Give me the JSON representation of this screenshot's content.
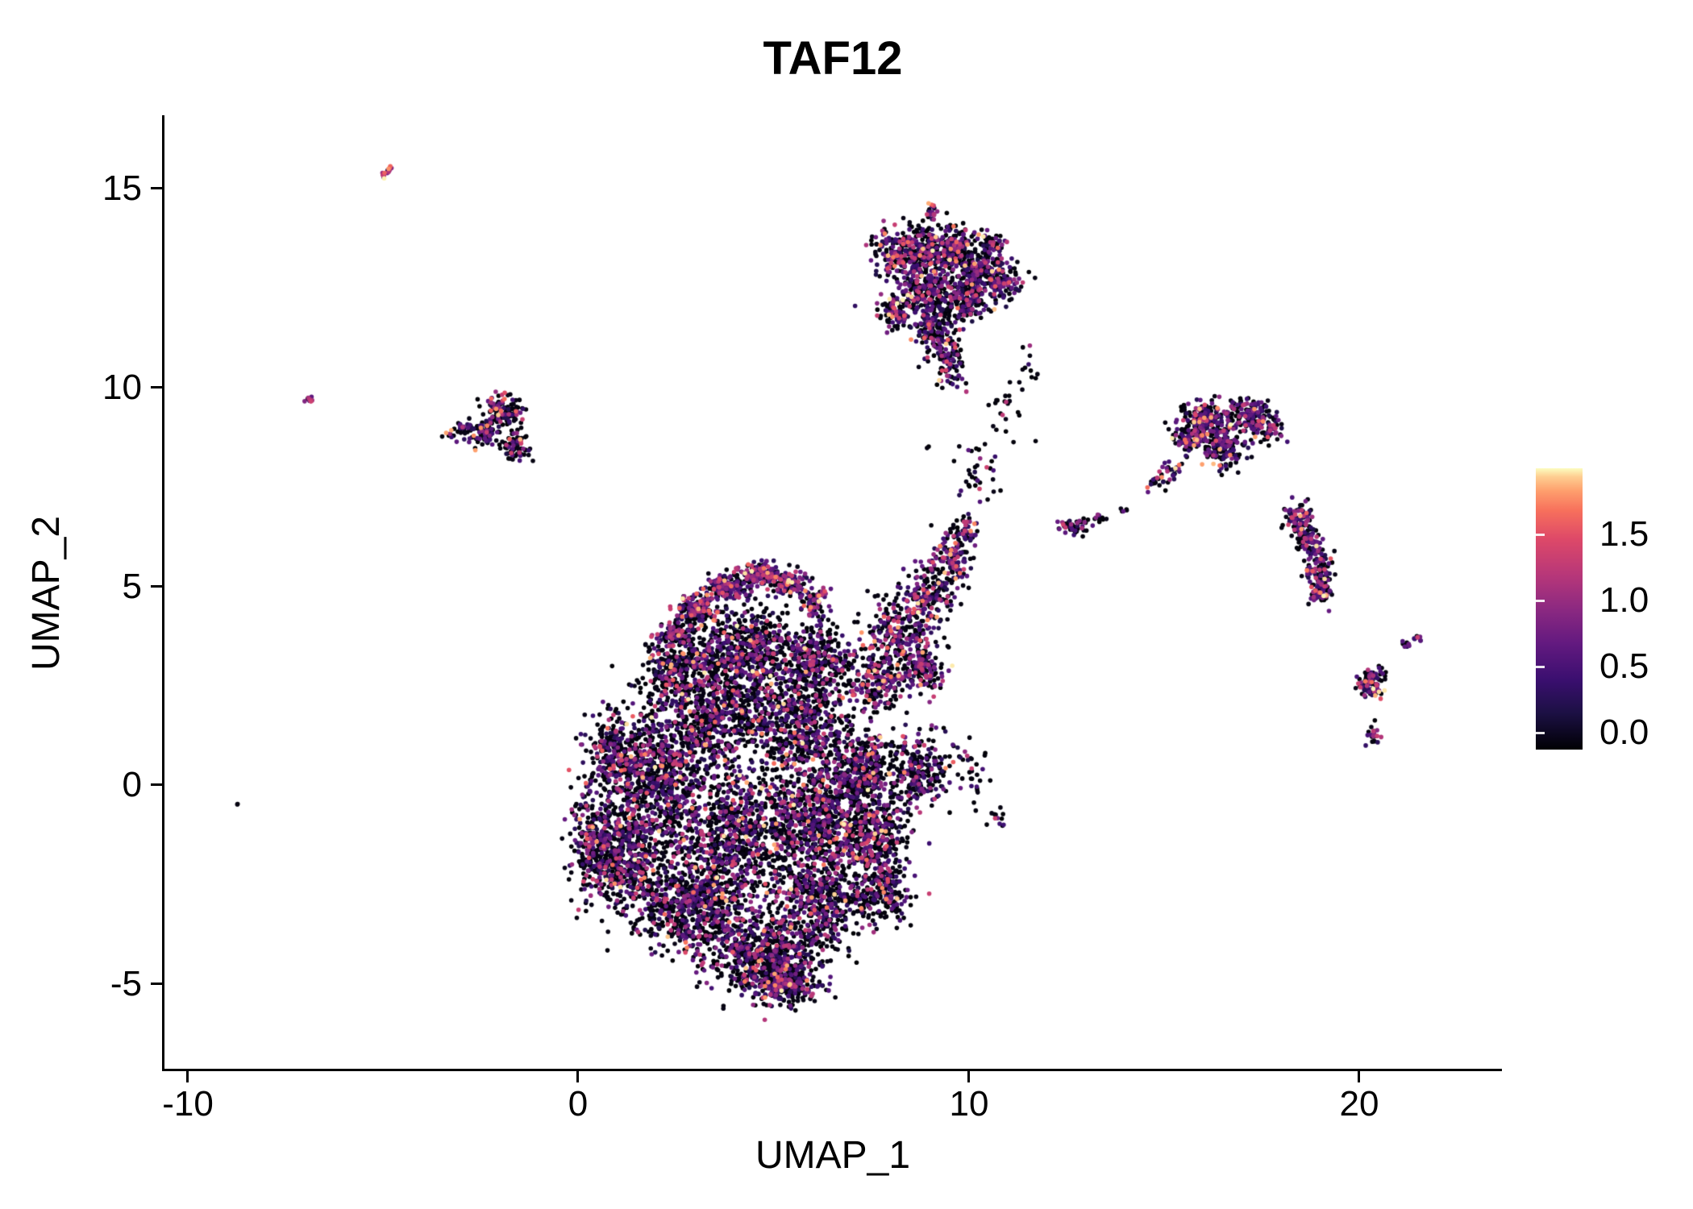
{
  "title": "TAF12",
  "axes": {
    "x": {
      "label": "UMAP_1",
      "tick_labels": [
        "-10",
        "0",
        "10",
        "20"
      ]
    },
    "y": {
      "label": "UMAP_2",
      "tick_labels": [
        "15",
        "10",
        "5",
        "0",
        "-5"
      ]
    }
  },
  "colorbar": {
    "tick_labels": [
      "1.5",
      "1.0",
      "0.5",
      "0.0"
    ]
  },
  "chart_data": {
    "type": "scatter",
    "title": "TAF12",
    "xlabel": "UMAP_1",
    "ylabel": "UMAP_2",
    "xlim": [
      -10.7,
      23.7
    ],
    "ylim": [
      -7.1,
      16.8
    ],
    "x_ticks": [
      -10,
      0,
      10,
      20
    ],
    "y_ticks": [
      -5,
      0,
      5,
      10,
      15
    ],
    "grid": false,
    "legend_position": "right",
    "color_scale": {
      "name": "magma",
      "meaning": "TAF12 expression level per cell",
      "min": 0.0,
      "max": 2.0,
      "ticks": [
        0.0,
        0.5,
        1.0,
        1.5
      ],
      "anchors": [
        [
          0.0,
          "#000004"
        ],
        [
          0.13,
          "#1c1044"
        ],
        [
          0.25,
          "#3b0f70"
        ],
        [
          0.38,
          "#641a80"
        ],
        [
          0.5,
          "#8c2981"
        ],
        [
          0.62,
          "#b73779"
        ],
        [
          0.75,
          "#de4968"
        ],
        [
          0.85,
          "#f7705c"
        ],
        [
          0.92,
          "#fe9f6d"
        ],
        [
          0.97,
          "#fece91"
        ],
        [
          1.0,
          "#fcfdbf"
        ]
      ]
    },
    "point_radius_px": 2.8,
    "expression_bins": [
      [
        0.0,
        0.08
      ],
      [
        0.25,
        0.85
      ],
      [
        0.9,
        1.4
      ],
      [
        1.45,
        2.0
      ]
    ],
    "clusters": [
      {
        "name": "main-body",
        "mix": [
          0.6,
          0.27,
          0.1,
          0.03
        ],
        "blobs": [
          [
            2.0,
            0.3,
            1.3,
            1.6,
            850
          ],
          [
            1.2,
            -1.8,
            0.9,
            1.2,
            550
          ],
          [
            3.0,
            -3.0,
            1.4,
            1.1,
            750
          ],
          [
            4.8,
            -4.3,
            1.3,
            0.9,
            650
          ],
          [
            5.3,
            -5.0,
            0.8,
            0.5,
            220
          ],
          [
            6.2,
            -3.0,
            1.0,
            1.0,
            450
          ],
          [
            7.8,
            -2.7,
            0.7,
            0.7,
            220
          ],
          [
            4.2,
            -1.2,
            1.6,
            1.5,
            850
          ],
          [
            6.3,
            -0.8,
            1.2,
            1.4,
            650
          ],
          [
            7.6,
            -1.4,
            0.8,
            1.0,
            350
          ],
          [
            8.7,
            0.3,
            0.7,
            0.8,
            240
          ],
          [
            3.6,
            1.8,
            1.4,
            1.2,
            650
          ],
          [
            5.8,
            1.5,
            1.2,
            1.2,
            550
          ],
          [
            7.3,
            0.4,
            0.7,
            0.9,
            280
          ],
          [
            4.3,
            3.4,
            1.2,
            1.0,
            550
          ],
          [
            6.1,
            3.2,
            0.9,
            0.8,
            320
          ],
          [
            2.6,
            3.0,
            0.8,
            0.8,
            280
          ],
          [
            0.4,
            -1.5,
            0.5,
            1.2,
            200
          ],
          [
            0.9,
            0.8,
            0.6,
            0.8,
            180
          ]
        ]
      },
      {
        "name": "main-top-rim",
        "mix": [
          0.35,
          0.4,
          0.2,
          0.05
        ],
        "blobs": [
          [
            3.0,
            4.4,
            0.5,
            0.35,
            140
          ],
          [
            3.8,
            5.0,
            0.5,
            0.3,
            140
          ],
          [
            4.6,
            5.3,
            0.5,
            0.28,
            140
          ],
          [
            5.4,
            5.1,
            0.5,
            0.28,
            110
          ],
          [
            2.5,
            3.8,
            0.4,
            0.3,
            80
          ],
          [
            6.0,
            4.6,
            0.35,
            0.3,
            70
          ]
        ]
      },
      {
        "name": "upper-right-lobe",
        "mix": [
          0.45,
          0.35,
          0.15,
          0.05
        ],
        "blobs": [
          [
            8.3,
            3.8,
            0.8,
            0.9,
            260
          ],
          [
            9.0,
            4.8,
            0.6,
            0.7,
            170
          ],
          [
            9.6,
            5.7,
            0.45,
            0.55,
            110
          ],
          [
            7.7,
            2.6,
            0.6,
            0.6,
            170
          ],
          [
            8.8,
            2.9,
            0.5,
            0.5,
            130
          ],
          [
            9.9,
            6.4,
            0.3,
            0.3,
            45
          ]
        ]
      },
      {
        "name": "top-cluster",
        "mix": [
          0.5,
          0.33,
          0.13,
          0.04
        ],
        "blobs": [
          [
            8.4,
            13.4,
            0.7,
            0.6,
            250
          ],
          [
            9.4,
            13.5,
            0.7,
            0.55,
            250
          ],
          [
            10.3,
            13.0,
            0.6,
            0.5,
            190
          ],
          [
            8.9,
            12.4,
            0.8,
            0.6,
            270
          ],
          [
            10.0,
            12.2,
            0.6,
            0.5,
            170
          ],
          [
            9.2,
            11.4,
            0.5,
            0.6,
            150
          ],
          [
            9.6,
            10.6,
            0.35,
            0.5,
            80
          ],
          [
            8.1,
            11.9,
            0.4,
            0.4,
            80
          ],
          [
            10.9,
            12.6,
            0.4,
            0.4,
            80
          ],
          [
            10.6,
            13.6,
            0.3,
            0.25,
            50
          ]
        ]
      },
      {
        "name": "top-cluster-spike",
        "mix": [
          0.2,
          0.3,
          0.4,
          0.1
        ],
        "blobs": [
          [
            9.05,
            14.35,
            0.1,
            0.28,
            22
          ]
        ]
      },
      {
        "name": "left-small-cluster",
        "mix": [
          0.55,
          0.28,
          0.12,
          0.05
        ],
        "blobs": [
          [
            -1.9,
            9.4,
            0.45,
            0.35,
            110
          ],
          [
            -2.4,
            8.9,
            0.35,
            0.3,
            75
          ],
          [
            -1.6,
            8.5,
            0.35,
            0.3,
            75
          ],
          [
            -2.9,
            8.9,
            0.25,
            0.2,
            35
          ],
          [
            -3.3,
            8.8,
            0.12,
            0.1,
            8
          ]
        ]
      },
      {
        "name": "right-cluster",
        "mix": [
          0.5,
          0.34,
          0.12,
          0.04
        ],
        "blobs": [
          [
            16.1,
            9.2,
            0.6,
            0.45,
            190
          ],
          [
            17.1,
            9.3,
            0.55,
            0.4,
            150
          ],
          [
            16.5,
            8.5,
            0.55,
            0.45,
            150
          ],
          [
            15.6,
            8.7,
            0.35,
            0.3,
            65
          ],
          [
            17.7,
            9.0,
            0.3,
            0.3,
            55
          ],
          [
            15.2,
            7.9,
            0.25,
            0.25,
            28
          ],
          [
            14.7,
            7.6,
            0.25,
            0.18,
            14
          ]
        ]
      },
      {
        "name": "right-elongated-cluster",
        "mix": [
          0.45,
          0.38,
          0.13,
          0.04
        ],
        "blobs": [
          [
            18.4,
            6.7,
            0.3,
            0.35,
            85
          ],
          [
            18.7,
            6.1,
            0.3,
            0.35,
            85
          ],
          [
            19.0,
            5.4,
            0.32,
            0.4,
            95
          ],
          [
            19.0,
            4.8,
            0.3,
            0.25,
            55
          ]
        ]
      },
      {
        "name": "small-cluster-far-right",
        "mix": [
          0.5,
          0.3,
          0.15,
          0.05
        ],
        "blobs": [
          [
            20.3,
            2.6,
            0.28,
            0.35,
            85
          ]
        ]
      },
      {
        "name": "tiny-cluster-far-right-low",
        "mix": [
          0.4,
          0.3,
          0.3,
          0.0
        ],
        "blobs": [
          [
            20.4,
            1.2,
            0.14,
            0.2,
            22
          ]
        ]
      },
      {
        "name": "streak-far-right",
        "mix": [
          0.3,
          0.5,
          0.2,
          0.0
        ],
        "blobs": [
          [
            21.2,
            3.5,
            0.12,
            0.08,
            9
          ],
          [
            21.5,
            3.7,
            0.12,
            0.08,
            9
          ]
        ]
      },
      {
        "name": "mid-right-small-cluster",
        "mix": [
          0.55,
          0.3,
          0.15,
          0.0
        ],
        "blobs": [
          [
            12.7,
            6.5,
            0.35,
            0.2,
            55
          ],
          [
            13.3,
            6.7,
            0.15,
            0.1,
            10
          ],
          [
            14.0,
            6.9,
            0.1,
            0.07,
            5
          ]
        ]
      },
      {
        "name": "sparse-bridge",
        "mix": [
          0.8,
          0.15,
          0.05,
          0.0
        ],
        "blobs": [
          [
            10.2,
            8.0,
            0.8,
            0.9,
            40
          ],
          [
            10.9,
            9.5,
            0.4,
            0.5,
            18
          ],
          [
            11.5,
            10.5,
            0.3,
            0.4,
            12
          ]
        ]
      },
      {
        "name": "sparse-right-of-main",
        "mix": [
          0.65,
          0.25,
          0.1,
          0.0
        ],
        "blobs": [
          [
            10.0,
            0.3,
            0.5,
            0.8,
            35
          ],
          [
            10.7,
            -0.8,
            0.3,
            0.4,
            12
          ]
        ]
      },
      {
        "name": "streak-top-left",
        "mix": [
          0.05,
          0.15,
          0.55,
          0.25
        ],
        "blobs": [
          [
            -5.0,
            15.3,
            0.06,
            0.06,
            6
          ],
          [
            -4.9,
            15.4,
            0.06,
            0.06,
            6
          ],
          [
            -4.82,
            15.5,
            0.06,
            0.06,
            6
          ]
        ]
      },
      {
        "name": "tiny-far-left",
        "mix": [
          0.25,
          0.25,
          0.4,
          0.1
        ],
        "blobs": [
          [
            -6.9,
            9.7,
            0.1,
            0.09,
            9
          ]
        ]
      },
      {
        "name": "singleton-far-left",
        "mix": [
          1.0,
          0.0,
          0.0,
          0.0
        ],
        "blobs": [
          [
            -8.7,
            -0.45,
            0.04,
            0.04,
            2
          ]
        ]
      }
    ]
  }
}
